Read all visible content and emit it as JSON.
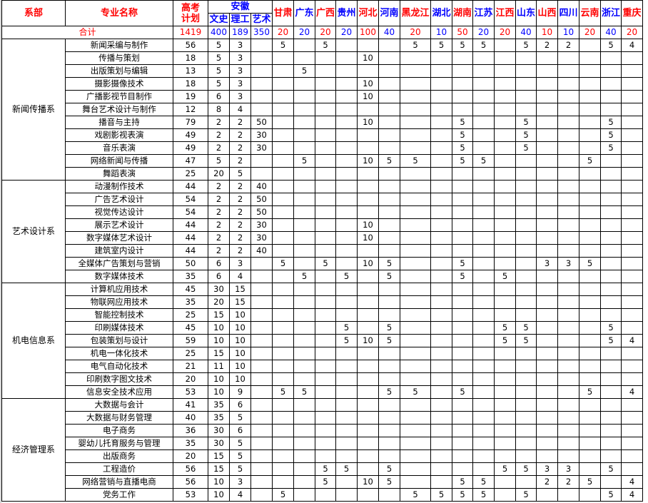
{
  "header": {
    "dept": "系部",
    "major": "专业名称",
    "plan": "高考计划",
    "anhui": "安徽",
    "anhui_sub": [
      "文史",
      "理工",
      "艺术"
    ],
    "provinces": [
      {
        "name": "甘肃",
        "color": "#ff0000"
      },
      {
        "name": "广东",
        "color": "#0000ff"
      },
      {
        "name": "广西",
        "color": "#ff0000"
      },
      {
        "name": "贵州",
        "color": "#0000ff"
      },
      {
        "name": "河北",
        "color": "#ff0000"
      },
      {
        "name": "河南",
        "color": "#0000ff"
      },
      {
        "name": "黑龙江",
        "color": "#ff0000"
      },
      {
        "name": "湖北",
        "color": "#0000ff"
      },
      {
        "name": "湖南",
        "color": "#ff0000"
      },
      {
        "name": "江苏",
        "color": "#0000ff"
      },
      {
        "name": "江西",
        "color": "#ff0000"
      },
      {
        "name": "山东",
        "color": "#0000ff"
      },
      {
        "name": "山西",
        "color": "#ff0000"
      },
      {
        "name": "四川",
        "color": "#0000ff"
      },
      {
        "name": "云南",
        "color": "#ff0000"
      },
      {
        "name": "浙江",
        "color": "#0000ff"
      },
      {
        "name": "重庆",
        "color": "#ff0000"
      }
    ]
  },
  "total": {
    "label": "合计",
    "plan": "1419",
    "anhui": [
      "400",
      "189",
      "350"
    ],
    "provinces": [
      "20",
      "20",
      "20",
      "20",
      "100",
      "40",
      "20",
      "10",
      "50",
      "20",
      "20",
      "40",
      "10",
      "10",
      "20",
      "40",
      "20"
    ]
  },
  "departments": [
    {
      "name": "新闻传播系",
      "majors": [
        {
          "major": "新闻采编与制作",
          "plan": "56",
          "anhui": [
            "5",
            "3",
            ""
          ],
          "prov": [
            "5",
            "",
            "5",
            "",
            "",
            "",
            "5",
            "5",
            "5",
            "5",
            "",
            "5",
            "2",
            "2",
            "",
            "5",
            "4"
          ]
        },
        {
          "major": "传播与策划",
          "plan": "18",
          "anhui": [
            "5",
            "3",
            ""
          ],
          "prov": [
            "",
            "",
            "",
            "",
            "10",
            "",
            "",
            "",
            "",
            "",
            "",
            "",
            "",
            "",
            "",
            "",
            ""
          ]
        },
        {
          "major": "出版策划与编辑",
          "plan": "13",
          "anhui": [
            "5",
            "3",
            ""
          ],
          "prov": [
            "",
            "5",
            "",
            "",
            "",
            "",
            "",
            "",
            "",
            "",
            "",
            "",
            "",
            "",
            "",
            "",
            ""
          ]
        },
        {
          "major": "摄影摄像技术",
          "plan": "18",
          "anhui": [
            "5",
            "3",
            ""
          ],
          "prov": [
            "",
            "",
            "",
            "",
            "10",
            "",
            "",
            "",
            "",
            "",
            "",
            "",
            "",
            "",
            "",
            "",
            ""
          ]
        },
        {
          "major": "广播影视节目制作",
          "plan": "19",
          "anhui": [
            "6",
            "3",
            ""
          ],
          "prov": [
            "",
            "",
            "",
            "",
            "10",
            "",
            "",
            "",
            "",
            "",
            "",
            "",
            "",
            "",
            "",
            "",
            ""
          ]
        },
        {
          "major": "舞台艺术设计与制作",
          "plan": "12",
          "anhui": [
            "8",
            "4",
            ""
          ],
          "prov": [
            "",
            "",
            "",
            "",
            "",
            "",
            "",
            "",
            "",
            "",
            "",
            "",
            "",
            "",
            "",
            "",
            ""
          ]
        },
        {
          "major": "播音与主持",
          "plan": "79",
          "anhui": [
            "2",
            "2",
            "50"
          ],
          "prov": [
            "",
            "",
            "",
            "",
            "10",
            "",
            "",
            "",
            "5",
            "",
            "",
            "5",
            "",
            "",
            "",
            "5",
            ""
          ]
        },
        {
          "major": "戏剧影视表演",
          "plan": "49",
          "anhui": [
            "2",
            "2",
            "30"
          ],
          "prov": [
            "",
            "",
            "",
            "",
            "",
            "",
            "",
            "",
            "5",
            "",
            "",
            "5",
            "",
            "",
            "",
            "5",
            ""
          ]
        },
        {
          "major": "音乐表演",
          "plan": "49",
          "anhui": [
            "2",
            "2",
            "30"
          ],
          "prov": [
            "",
            "",
            "",
            "",
            "",
            "",
            "",
            "",
            "5",
            "",
            "",
            "5",
            "",
            "",
            "",
            "5",
            ""
          ]
        },
        {
          "major": "网络新闻与传播",
          "plan": "47",
          "anhui": [
            "5",
            "2",
            ""
          ],
          "prov": [
            "",
            "5",
            "",
            "",
            "10",
            "5",
            "5",
            "",
            "5",
            "5",
            "",
            "",
            "",
            "",
            "5",
            "",
            ""
          ]
        },
        {
          "major": "舞蹈表演",
          "plan": "25",
          "anhui": [
            "20",
            "5",
            ""
          ],
          "prov": [
            "",
            "",
            "",
            "",
            "",
            "",
            "",
            "",
            "",
            "",
            "",
            "",
            "",
            "",
            "",
            "",
            ""
          ]
        }
      ]
    },
    {
      "name": "艺术设计系",
      "majors": [
        {
          "major": "动漫制作技术",
          "plan": "44",
          "anhui": [
            "2",
            "2",
            "40"
          ],
          "prov": [
            "",
            "",
            "",
            "",
            "",
            "",
            "",
            "",
            "",
            "",
            "",
            "",
            "",
            "",
            "",
            "",
            ""
          ]
        },
        {
          "major": "广告艺术设计",
          "plan": "54",
          "anhui": [
            "2",
            "2",
            "50"
          ],
          "prov": [
            "",
            "",
            "",
            "",
            "",
            "",
            "",
            "",
            "",
            "",
            "",
            "",
            "",
            "",
            "",
            "",
            ""
          ]
        },
        {
          "major": "视觉传达设计",
          "plan": "54",
          "anhui": [
            "2",
            "2",
            "50"
          ],
          "prov": [
            "",
            "",
            "",
            "",
            "",
            "",
            "",
            "",
            "",
            "",
            "",
            "",
            "",
            "",
            "",
            "",
            ""
          ]
        },
        {
          "major": "展示艺术设计",
          "plan": "44",
          "anhui": [
            "2",
            "2",
            "30"
          ],
          "prov": [
            "",
            "",
            "",
            "",
            "10",
            "",
            "",
            "",
            "",
            "",
            "",
            "",
            "",
            "",
            "",
            "",
            ""
          ]
        },
        {
          "major": "数字媒体艺术设计",
          "plan": "44",
          "anhui": [
            "2",
            "2",
            "30"
          ],
          "prov": [
            "",
            "",
            "",
            "",
            "10",
            "",
            "",
            "",
            "",
            "",
            "",
            "",
            "",
            "",
            "",
            "",
            ""
          ]
        },
        {
          "major": "建筑室内设计",
          "plan": "44",
          "anhui": [
            "2",
            "2",
            "40"
          ],
          "prov": [
            "",
            "",
            "",
            "",
            "",
            "",
            "",
            "",
            "",
            "",
            "",
            "",
            "",
            "",
            "",
            "",
            ""
          ]
        },
        {
          "major": "全媒体广告策划与营销",
          "plan": "50",
          "anhui": [
            "6",
            "3",
            ""
          ],
          "prov": [
            "5",
            "",
            "5",
            "",
            "10",
            "5",
            "",
            "",
            "5",
            "",
            "",
            "",
            "3",
            "3",
            "5",
            "",
            ""
          ]
        },
        {
          "major": "数字媒体技术",
          "plan": "35",
          "anhui": [
            "6",
            "4",
            ""
          ],
          "prov": [
            "",
            "5",
            "",
            "5",
            "",
            "5",
            "",
            "",
            "5",
            "",
            "5",
            "",
            "",
            "",
            "",
            "",
            ""
          ]
        }
      ]
    },
    {
      "name": "机电信息系",
      "majors": [
        {
          "major": "计算机应用技术",
          "plan": "45",
          "anhui": [
            "30",
            "15",
            ""
          ],
          "prov": [
            "",
            "",
            "",
            "",
            "",
            "",
            "",
            "",
            "",
            "",
            "",
            "",
            "",
            "",
            "",
            "",
            ""
          ]
        },
        {
          "major": "物联网应用技术",
          "plan": "35",
          "anhui": [
            "20",
            "15",
            ""
          ],
          "prov": [
            "",
            "",
            "",
            "",
            "",
            "",
            "",
            "",
            "",
            "",
            "",
            "",
            "",
            "",
            "",
            "",
            ""
          ]
        },
        {
          "major": "智能控制技术",
          "plan": "25",
          "anhui": [
            "15",
            "10",
            ""
          ],
          "prov": [
            "",
            "",
            "",
            "",
            "",
            "",
            "",
            "",
            "",
            "",
            "",
            "",
            "",
            "",
            "",
            "",
            ""
          ]
        },
        {
          "major": "印刷媒体技术",
          "plan": "45",
          "anhui": [
            "10",
            "10",
            ""
          ],
          "prov": [
            "",
            "",
            "",
            "5",
            "",
            "5",
            "",
            "",
            "",
            "",
            "5",
            "5",
            "",
            "",
            "",
            "5",
            ""
          ]
        },
        {
          "major": "包装策划与设计",
          "plan": "59",
          "anhui": [
            "10",
            "10",
            ""
          ],
          "prov": [
            "",
            "",
            "",
            "5",
            "10",
            "5",
            "",
            "",
            "",
            "",
            "5",
            "5",
            "",
            "",
            "",
            "5",
            "4"
          ]
        },
        {
          "major": "机电一体化技术",
          "plan": "25",
          "anhui": [
            "15",
            "10",
            ""
          ],
          "prov": [
            "",
            "",
            "",
            "",
            "",
            "",
            "",
            "",
            "",
            "",
            "",
            "",
            "",
            "",
            "",
            "",
            ""
          ]
        },
        {
          "major": "电气自动化技术",
          "plan": "21",
          "anhui": [
            "11",
            "10",
            ""
          ],
          "prov": [
            "",
            "",
            "",
            "",
            "",
            "",
            "",
            "",
            "",
            "",
            "",
            "",
            "",
            "",
            "",
            "",
            ""
          ]
        },
        {
          "major": "印刷数字图文技术",
          "plan": "20",
          "anhui": [
            "10",
            "10",
            ""
          ],
          "prov": [
            "",
            "",
            "",
            "",
            "",
            "",
            "",
            "",
            "",
            "",
            "",
            "",
            "",
            "",
            "",
            "",
            ""
          ]
        },
        {
          "major": "信息安全技术应用",
          "plan": "53",
          "anhui": [
            "10",
            "9",
            ""
          ],
          "prov": [
            "5",
            "5",
            "",
            "",
            "",
            "5",
            "5",
            "",
            "5",
            "",
            "",
            "",
            "",
            "",
            "5",
            "",
            "4"
          ]
        }
      ]
    },
    {
      "name": "经济管理系",
      "majors": [
        {
          "major": "大数据与会计",
          "plan": "41",
          "anhui": [
            "35",
            "6",
            ""
          ],
          "prov": [
            "",
            "",
            "",
            "",
            "",
            "",
            "",
            "",
            "",
            "",
            "",
            "",
            "",
            "",
            "",
            "",
            ""
          ]
        },
        {
          "major": "大数据与财务管理",
          "plan": "40",
          "anhui": [
            "35",
            "5",
            ""
          ],
          "prov": [
            "",
            "",
            "",
            "",
            "",
            "",
            "",
            "",
            "",
            "",
            "",
            "",
            "",
            "",
            "",
            "",
            ""
          ]
        },
        {
          "major": "电子商务",
          "plan": "36",
          "anhui": [
            "30",
            "6",
            ""
          ],
          "prov": [
            "",
            "",
            "",
            "",
            "",
            "",
            "",
            "",
            "",
            "",
            "",
            "",
            "",
            "",
            "",
            "",
            ""
          ]
        },
        {
          "major": "婴幼儿托育服务与管理",
          "plan": "35",
          "anhui": [
            "30",
            "5",
            ""
          ],
          "prov": [
            "",
            "",
            "",
            "",
            "",
            "",
            "",
            "",
            "",
            "",
            "",
            "",
            "",
            "",
            "",
            "",
            ""
          ]
        },
        {
          "major": "出版商务",
          "plan": "20",
          "anhui": [
            "15",
            "5",
            ""
          ],
          "prov": [
            "",
            "",
            "",
            "",
            "",
            "",
            "",
            "",
            "",
            "",
            "",
            "",
            "",
            "",
            "",
            "",
            ""
          ]
        },
        {
          "major": "工程造价",
          "plan": "56",
          "anhui": [
            "15",
            "5",
            ""
          ],
          "prov": [
            "",
            "",
            "5",
            "5",
            "",
            "5",
            "",
            "",
            "",
            "",
            "5",
            "5",
            "3",
            "3",
            "",
            "5",
            ""
          ]
        },
        {
          "major": "网络营销与直播电商",
          "plan": "56",
          "anhui": [
            "10",
            "3",
            ""
          ],
          "prov": [
            "",
            "",
            "5",
            "",
            "10",
            "5",
            "",
            "",
            "5",
            "5",
            "",
            "",
            "2",
            "2",
            "5",
            "",
            "4"
          ]
        },
        {
          "major": "党务工作",
          "plan": "53",
          "anhui": [
            "10",
            "4",
            ""
          ],
          "prov": [
            "5",
            "",
            "",
            "",
            "",
            "",
            "5",
            "5",
            "5",
            "5",
            "",
            "5",
            "",
            "",
            "",
            "5",
            "4"
          ]
        }
      ]
    }
  ]
}
